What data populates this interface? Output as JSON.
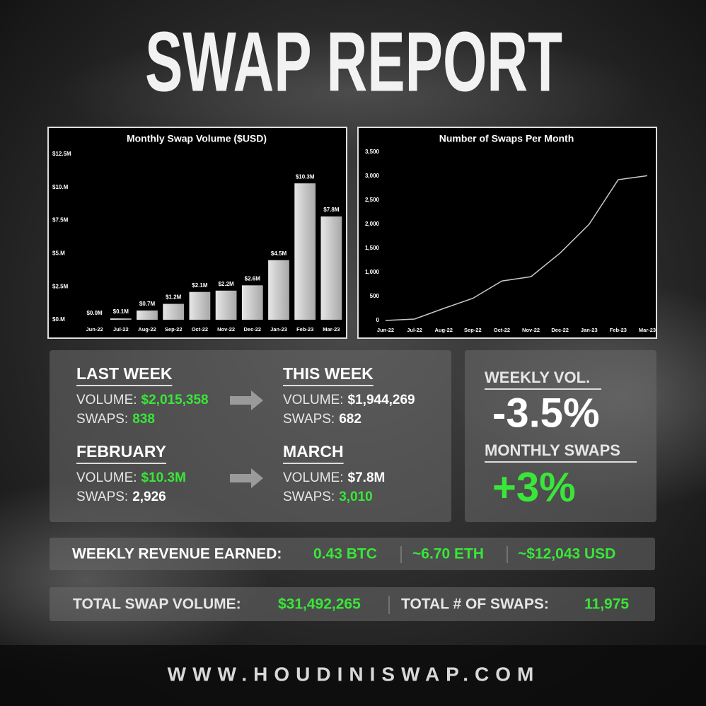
{
  "header": {
    "title": "SWAP REPORT"
  },
  "chart_data": [
    {
      "type": "bar",
      "title": "Monthly Swap Volume ($USD)",
      "categories": [
        "Jun-22",
        "Jul-22",
        "Aug-22",
        "Sep-22",
        "Oct-22",
        "Nov-22",
        "Dec-22",
        "Jan-23",
        "Feb-23",
        "Mar-23"
      ],
      "values": [
        0,
        100000,
        700000,
        1200000,
        2100000,
        2200000,
        2600000,
        4500000,
        10300000,
        7800000
      ],
      "value_labels": [
        "$0.0M",
        "$0.1M",
        "$0.7M",
        "$1.2M",
        "$2.1M",
        "$2.2M",
        "$2.6M",
        "$4.5M",
        "$10.3M",
        "$7.8M"
      ],
      "color": "#cfcfcf",
      "ylim": [
        0,
        12500000
      ],
      "yticks": [
        {
          "value": 0,
          "label": "$0.M"
        },
        {
          "value": 2500000,
          "label": "$2.5M"
        },
        {
          "value": 5000000,
          "label": "$5.M"
        },
        {
          "value": 7500000,
          "label": "$7.5M"
        },
        {
          "value": 10000000,
          "label": "$10.M"
        },
        {
          "value": 12500000,
          "label": "$12.5M"
        }
      ]
    },
    {
      "type": "line",
      "title": "Number of Swaps Per Month",
      "categories": [
        "Jun-22",
        "Jul-22",
        "Aug-22",
        "Sep-22",
        "Oct-22",
        "Nov-22",
        "Dec-22",
        "Jan-23",
        "Feb-23",
        "Mar-23"
      ],
      "values": [
        0,
        30,
        250,
        460,
        820,
        910,
        1400,
        2000,
        2926,
        3010
      ],
      "color": "#c8c8c8",
      "ylim": [
        0,
        3500
      ],
      "yticks": [
        0,
        500,
        {
          "value": 1000,
          "label": "1,000"
        },
        {
          "value": 1500,
          "label": "1,500"
        },
        {
          "value": 2000,
          "label": "2,000"
        },
        {
          "value": 2500,
          "label": "2,500"
        },
        {
          "value": 3000,
          "label": "3,000"
        },
        {
          "value": 3500,
          "label": "3,500"
        }
      ]
    }
  ],
  "comparisons": [
    {
      "period": "LAST WEEK",
      "volume_label": "VOLUME:",
      "volume": "$2,015,358",
      "swaps_label": "SWAPS:",
      "swaps": "838"
    },
    {
      "period": "THIS WEEK",
      "volume_label": "VOLUME:",
      "volume": "$1,944,269",
      "swaps_label": "SWAPS:",
      "swaps": "682"
    },
    {
      "period": "FEBRUARY",
      "volume_label": "VOLUME:",
      "volume": "$10.3M",
      "swaps_label": "SWAPS:",
      "swaps": "2,926"
    },
    {
      "period": "MARCH",
      "volume_label": "VOLUME:",
      "volume": "$7.8M",
      "swaps_label": "SWAPS:",
      "swaps": "3,010"
    }
  ],
  "summary": {
    "weekly_vol_label": "WEEKLY VOL.",
    "weekly_vol": "-3.5%",
    "monthly_swaps_label": "MONTHLY SWAPS",
    "monthly_swaps": "+3%"
  },
  "revenue": {
    "label": "WEEKLY REVENUE EARNED:",
    "items": [
      "0.43 BTC",
      "~6.70 ETH",
      "~$12,043 USD"
    ]
  },
  "totals": {
    "volume_label": "TOTAL SWAP VOLUME:",
    "volume": "$31,492,265",
    "swaps_label": "TOTAL # OF SWAPS:",
    "swaps": "11,975"
  },
  "footer": {
    "url": "WWW.HOUDINISWAP.COM"
  }
}
